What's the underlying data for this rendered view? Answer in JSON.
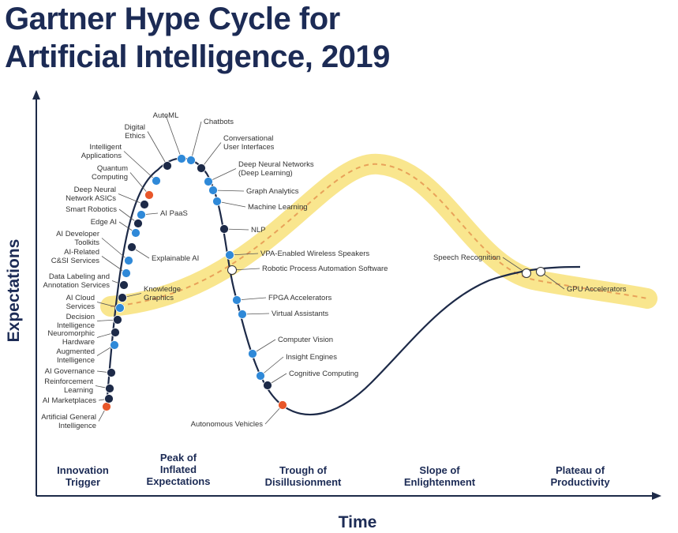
{
  "title": {
    "line1": "Gartner Hype Cycle for",
    "line2": "Artificial Intelligence, 2019"
  },
  "axes": {
    "x": "Time",
    "y": "Expectations"
  },
  "phases": [
    {
      "id": "innovation",
      "lines": [
        "Innovation",
        "Trigger"
      ]
    },
    {
      "id": "peak",
      "lines": [
        "Peak of",
        "Inflated",
        "Expectations"
      ]
    },
    {
      "id": "trough",
      "lines": [
        "Trough of",
        "Disillusionment"
      ]
    },
    {
      "id": "slope",
      "lines": [
        "Slope of",
        "Enlightenment"
      ]
    },
    {
      "id": "plateau",
      "lines": [
        "Plateau of",
        "Productivity"
      ]
    }
  ],
  "legend_colors": {
    "less_than_2_years": "#ffffff",
    "two_to_5_years": "#2f89d8",
    "five_to_10_years": "#1d2a48",
    "more_than_10_years": "#e8572a"
  },
  "technologies": [
    {
      "name": "Artificial General\nIntelligence",
      "status": "more_than_10_years"
    },
    {
      "name": "AI Marketplaces",
      "status": "five_to_10_years"
    },
    {
      "name": "Reinforcement\nLearning",
      "status": "five_to_10_years"
    },
    {
      "name": "AI Governance",
      "status": "five_to_10_years"
    },
    {
      "name": "Augmented\nIntelligence",
      "status": "two_to_5_years"
    },
    {
      "name": "Neuromorphic\nHardware",
      "status": "five_to_10_years"
    },
    {
      "name": "Decision\nIntelligence",
      "status": "five_to_10_years"
    },
    {
      "name": "AI Cloud\nServices",
      "status": "two_to_5_years"
    },
    {
      "name": "Knowledge\nGraphics",
      "status": "five_to_10_years"
    },
    {
      "name": "Data Labeling and\nAnnotation Services",
      "status": "five_to_10_years"
    },
    {
      "name": "AI-Related\nC&SI Services",
      "status": "two_to_5_years"
    },
    {
      "name": "AI Developer\nToolkits",
      "status": "two_to_5_years"
    },
    {
      "name": "Explainable AI",
      "status": "five_to_10_years"
    },
    {
      "name": "Edge AI",
      "status": "two_to_5_years"
    },
    {
      "name": "Smart Robotics",
      "status": "five_to_10_years"
    },
    {
      "name": "AI PaaS",
      "status": "two_to_5_years"
    },
    {
      "name": "Deep Neural\nNetwork ASICs",
      "status": "five_to_10_years"
    },
    {
      "name": "Quantum\nComputing",
      "status": "more_than_10_years"
    },
    {
      "name": "Intelligent\nApplications",
      "status": "two_to_5_years"
    },
    {
      "name": "Digital\nEthics",
      "status": "five_to_10_years"
    },
    {
      "name": "AutoML",
      "status": "two_to_5_years"
    },
    {
      "name": "Chatbots",
      "status": "two_to_5_years"
    },
    {
      "name": "Conversational\nUser Interfaces",
      "status": "five_to_10_years"
    },
    {
      "name": "Deep Neural Networks\n(Deep Learning)",
      "status": "two_to_5_years"
    },
    {
      "name": "Graph Analytics",
      "status": "two_to_5_years"
    },
    {
      "name": "Machine Learning",
      "status": "two_to_5_years"
    },
    {
      "name": "NLP",
      "status": "five_to_10_years"
    },
    {
      "name": "VPA-Enabled Wireless Speakers",
      "status": "two_to_5_years"
    },
    {
      "name": "Robotic Process Automation Software",
      "status": "less_than_2_years"
    },
    {
      "name": "FPGA Accelerators",
      "status": "two_to_5_years"
    },
    {
      "name": "Virtual Assistants",
      "status": "two_to_5_years"
    },
    {
      "name": "Computer Vision",
      "status": "two_to_5_years"
    },
    {
      "name": "Insight Engines",
      "status": "two_to_5_years"
    },
    {
      "name": "Cognitive Computing",
      "status": "five_to_10_years"
    },
    {
      "name": "Autonomous Vehicles",
      "status": "more_than_10_years"
    },
    {
      "name": "Speech Recognition",
      "status": "less_than_2_years"
    },
    {
      "name": "GPU Accelerators",
      "status": "less_than_2_years"
    }
  ]
}
